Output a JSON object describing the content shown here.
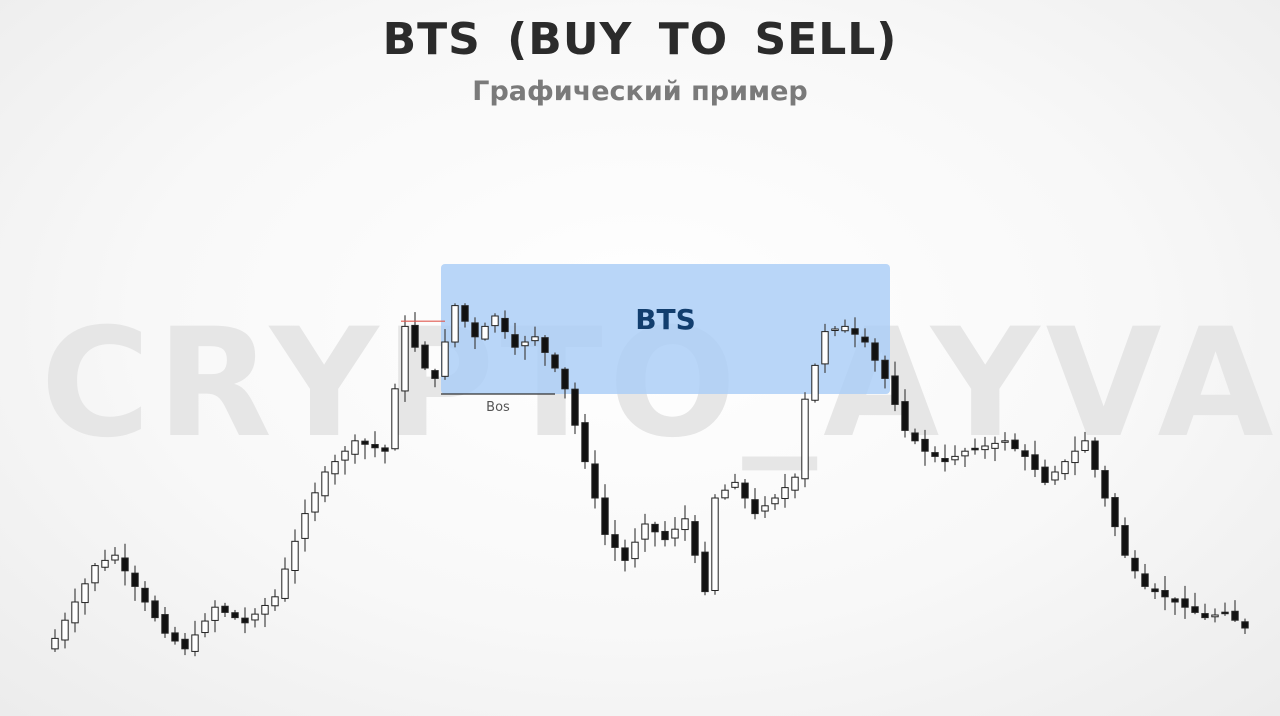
{
  "header": {
    "title": "BTS (BUY TO SELL)",
    "subtitle": "Графический пример"
  },
  "watermark": "CRYPTO_AYVA",
  "colors": {
    "zone_fill": "#a9cdf7",
    "zone_text": "#123e6e",
    "up_candle": "#ffffff",
    "down_candle": "#111111",
    "wick": "#444444",
    "level_line": "#e05a50"
  },
  "chart_data": {
    "type": "candlestick",
    "title": "BTS (BUY TO SELL)",
    "subtitle": "Графический пример",
    "xlabel": "",
    "ylabel": "",
    "axes_visible": false,
    "grid": false,
    "ylim": [
      0,
      100
    ],
    "anchors": [
      [
        0,
        8
      ],
      [
        4,
        22
      ],
      [
        6,
        24
      ],
      [
        8,
        18
      ],
      [
        11,
        9
      ],
      [
        13,
        6
      ],
      [
        16,
        14
      ],
      [
        19,
        11
      ],
      [
        22,
        16
      ],
      [
        25,
        32
      ],
      [
        27,
        40
      ],
      [
        30,
        46
      ],
      [
        33,
        44
      ],
      [
        35,
        68
      ],
      [
        37,
        60
      ],
      [
        38,
        58
      ],
      [
        40,
        72
      ],
      [
        42,
        66
      ],
      [
        44,
        70
      ],
      [
        46,
        64
      ],
      [
        48,
        66
      ],
      [
        50,
        60
      ],
      [
        51,
        56
      ],
      [
        53,
        42
      ],
      [
        55,
        28
      ],
      [
        57,
        23
      ],
      [
        59,
        30
      ],
      [
        61,
        27
      ],
      [
        63,
        31
      ],
      [
        65,
        17
      ],
      [
        66,
        35
      ],
      [
        68,
        38
      ],
      [
        70,
        32
      ],
      [
        72,
        35
      ],
      [
        74,
        39
      ],
      [
        75,
        54
      ],
      [
        77,
        67
      ],
      [
        79,
        68
      ],
      [
        81,
        65
      ],
      [
        83,
        58
      ],
      [
        85,
        48
      ],
      [
        87,
        44
      ],
      [
        89,
        42
      ],
      [
        91,
        44
      ],
      [
        93,
        45
      ],
      [
        95,
        46
      ],
      [
        97,
        43
      ],
      [
        99,
        38
      ],
      [
        101,
        42
      ],
      [
        103,
        46
      ],
      [
        105,
        35
      ],
      [
        107,
        24
      ],
      [
        109,
        18
      ],
      [
        111,
        16
      ],
      [
        113,
        14
      ],
      [
        115,
        12
      ],
      [
        117,
        13
      ],
      [
        119,
        10
      ]
    ],
    "annotations": [
      {
        "type": "zone",
        "label": "BTS",
        "x_range": [
          39,
          83
        ],
        "y_range": [
          55,
          80
        ]
      },
      {
        "type": "level",
        "label": "Bos",
        "y": 55,
        "x_range": [
          39,
          50
        ]
      },
      {
        "type": "level",
        "label": "",
        "y": 69,
        "x_range": [
          35,
          39
        ]
      }
    ]
  }
}
